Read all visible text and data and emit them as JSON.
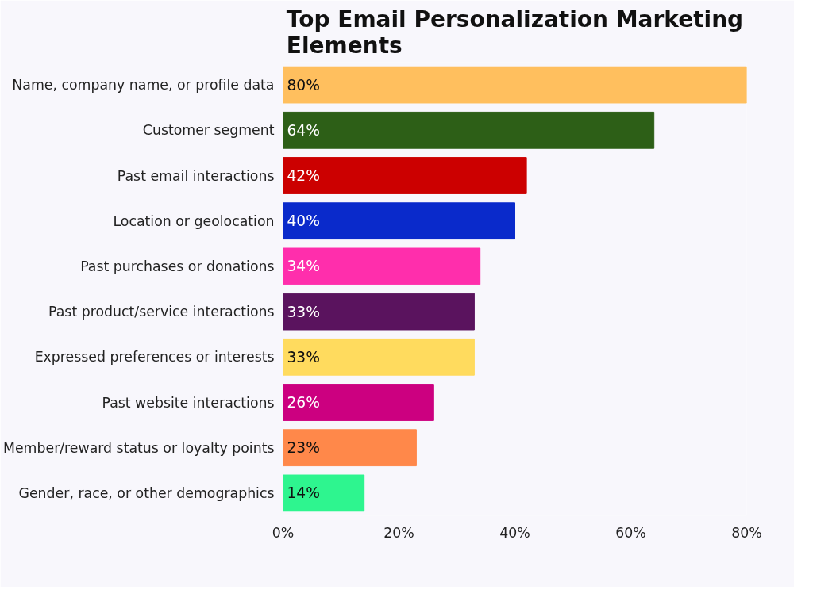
{
  "chart_data": {
    "type": "bar",
    "orientation": "horizontal",
    "title": "Top Email Personalization Marketing Elements",
    "categories": [
      "Name, company name, or profile data",
      "Customer segment",
      "Past email interactions",
      "Location or geolocation",
      "Past purchases or donations",
      "Past product/service interactions",
      "Expressed preferences or interests",
      "Past website interactions",
      "Member/reward status or loyalty points",
      "Gender, race, or other demographics"
    ],
    "values": [
      80,
      64,
      42,
      40,
      34,
      33,
      33,
      26,
      23,
      14
    ],
    "colors": [
      "#ffbf5e",
      "#2d5f17",
      "#cc0000",
      "#0a2acb",
      "#ff2eac",
      "#5a135e",
      "#ffdb5e",
      "#cc0080",
      "#ff884a",
      "#2ef58f"
    ],
    "value_labels": [
      "80%",
      "64%",
      "42%",
      "40%",
      "34%",
      "33%",
      "33%",
      "26%",
      "23%",
      "14%"
    ],
    "xlim": [
      0,
      80
    ],
    "xticks": [
      {
        "value": 0,
        "label": "0%"
      },
      {
        "value": 20,
        "label": "20%"
      },
      {
        "value": 40,
        "label": "40%"
      },
      {
        "value": 60,
        "label": "60%"
      },
      {
        "value": 80,
        "label": "80%"
      }
    ],
    "grid": false
  }
}
